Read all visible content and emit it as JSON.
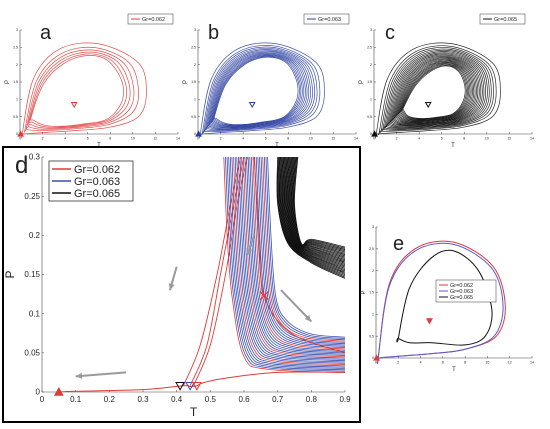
{
  "chart_data": [
    {
      "panel": "a",
      "type": "line",
      "panel_label": "a",
      "xlabel": "T",
      "ylabel": "P",
      "xlim": [
        0,
        14
      ],
      "ylim": [
        0,
        3
      ],
      "xticks": [
        "0",
        "2",
        "4",
        "6",
        "8",
        "10",
        "12",
        "14"
      ],
      "yticks": [
        "0",
        "0.5",
        "1",
        "1.5",
        "2",
        "2.5",
        "3"
      ],
      "legend": [
        "Gr=0.062"
      ],
      "legend_position": "top-right",
      "series": [
        {
          "name": "Gr=0.062",
          "color": "#e03a3a",
          "loop_count": 6,
          "outer_loop_x": [
            0.2,
            1.2,
            3.5,
            7.0,
            10.5,
            11.2,
            10.5,
            8.0,
            5.0,
            2.5,
            1.0,
            0.3
          ],
          "outer_loop_y": [
            0.0,
            1.6,
            2.45,
            2.6,
            2.05,
            1.2,
            0.5,
            0.2,
            0.1,
            0.05,
            0.02,
            0.0
          ],
          "inner_loop_x": [
            1.0,
            2.5,
            5.5,
            8.0,
            9.6,
            8.0,
            5.0,
            2.5,
            1.2
          ],
          "inner_loop_y": [
            0.5,
            1.8,
            2.3,
            2.1,
            1.2,
            0.45,
            0.25,
            0.2,
            0.4
          ]
        }
      ],
      "markers": [
        {
          "x": 4.8,
          "y": 0.85,
          "symbol": "triangle-down-open",
          "color": "#e03a3a"
        },
        {
          "x": 0.05,
          "y": 0.0,
          "symbol": "triangle-up-filled",
          "color": "#e03a3a"
        }
      ]
    },
    {
      "panel": "b",
      "type": "line",
      "panel_label": "b",
      "xlabel": "T",
      "ylabel": "P",
      "xlim": [
        0,
        14
      ],
      "ylim": [
        0,
        3
      ],
      "xticks": [
        "0",
        "2",
        "4",
        "6",
        "8",
        "10",
        "12",
        "14"
      ],
      "yticks": [
        "0",
        "0.5",
        "1",
        "1.5",
        "2",
        "2.5",
        "3"
      ],
      "legend": [
        "Gr=0.063"
      ],
      "legend_position": "top-right",
      "series": [
        {
          "name": "Gr=0.063",
          "color": "#2b3fa0",
          "loop_count": 14,
          "outer_loop_x": [
            0.2,
            1.2,
            3.5,
            7.0,
            10.5,
            11.2,
            10.5,
            8.0,
            5.0,
            2.5,
            1.0,
            0.3
          ],
          "outer_loop_y": [
            0.0,
            1.6,
            2.45,
            2.6,
            2.05,
            1.2,
            0.5,
            0.2,
            0.1,
            0.05,
            0.02,
            0.0
          ],
          "inner_loop_x": [
            1.5,
            2.8,
            5.5,
            8.0,
            9.2,
            7.8,
            5.0,
            2.8,
            1.6
          ],
          "inner_loop_y": [
            0.55,
            1.75,
            2.25,
            2.05,
            1.2,
            0.5,
            0.3,
            0.25,
            0.45
          ]
        }
      ],
      "markers": [
        {
          "x": 4.8,
          "y": 0.85,
          "symbol": "triangle-down-open",
          "color": "#2b3fa0"
        },
        {
          "x": 0.05,
          "y": 0.0,
          "symbol": "triangle-up-filled",
          "color": "#2b3fa0"
        }
      ]
    },
    {
      "panel": "c",
      "type": "line",
      "panel_label": "c",
      "xlabel": "T",
      "ylabel": "P",
      "xlim": [
        0,
        14
      ],
      "ylim": [
        0,
        3
      ],
      "xticks": [
        "0",
        "2",
        "4",
        "6",
        "8",
        "10",
        "12",
        "14"
      ],
      "yticks": [
        "0",
        "0.5",
        "1",
        "1.5",
        "2",
        "2.5",
        "3"
      ],
      "legend": [
        "Gr=0.065"
      ],
      "legend_position": "top-right",
      "series": [
        {
          "name": "Gr=0.065",
          "color": "#111111",
          "loop_count": 22,
          "outer_loop_x": [
            0.2,
            1.2,
            3.5,
            7.0,
            10.5,
            11.2,
            10.5,
            8.0,
            5.0,
            2.5,
            1.0,
            0.3
          ],
          "outer_loop_y": [
            0.0,
            1.6,
            2.45,
            2.6,
            2.05,
            1.2,
            0.5,
            0.2,
            0.1,
            0.05,
            0.02,
            0.0
          ],
          "inner_loop_x": [
            2.6,
            4.0,
            6.0,
            7.6,
            8.3,
            7.2,
            5.0,
            3.2,
            2.6
          ],
          "inner_loop_y": [
            0.75,
            1.6,
            2.0,
            1.8,
            1.15,
            0.6,
            0.45,
            0.45,
            0.7
          ]
        }
      ],
      "markers": [
        {
          "x": 4.8,
          "y": 0.85,
          "symbol": "triangle-down-open",
          "color": "#111111"
        },
        {
          "x": 0.05,
          "y": 0.0,
          "symbol": "triangle-up-filled",
          "color": "#111111"
        }
      ]
    },
    {
      "panel": "d",
      "type": "line",
      "panel_label": "d",
      "xlabel": "T",
      "ylabel": "P",
      "xlim": [
        0,
        0.9
      ],
      "ylim": [
        0,
        0.3
      ],
      "xticks": [
        "0",
        "0.1",
        "0.2",
        "0.3",
        "0.4",
        "0.5",
        "0.6",
        "0.7",
        "0.8",
        "0.9"
      ],
      "yticks": [
        "0",
        "0.05",
        "0.1",
        "0.15",
        "0.2",
        "0.25",
        "0.3"
      ],
      "legend": [
        "Gr=0.062",
        "Gr=0.063",
        "Gr=0.065"
      ],
      "legend_position": "top-left",
      "series": [
        {
          "name": "Gr=0.062",
          "color": "#e03a3a",
          "trajectory_x": [
            0.9,
            0.7,
            0.55,
            0.48,
            0.46,
            0.44,
            0.42,
            0.3,
            0.1,
            0.05
          ],
          "trajectory_y": [
            0.025,
            0.025,
            0.018,
            0.012,
            0.008,
            0.007,
            0.008,
            0.003,
            0.001,
            0.0
          ]
        },
        {
          "name": "Gr=0.063",
          "color": "#3b4fb0",
          "spiral_band_x": [
            0.55,
            0.9
          ],
          "spiral_band_y": [
            0.02,
            0.3
          ]
        },
        {
          "name": "Gr=0.065",
          "color": "#111111",
          "spiral_band_x": [
            0.7,
            0.9
          ],
          "spiral_band_y": [
            0.14,
            0.3
          ]
        }
      ],
      "markers": [
        {
          "x": 0.05,
          "y": 0.0,
          "symbol": "triangle-up-filled",
          "color": "#e03a3a"
        },
        {
          "x": 0.41,
          "y": 0.008,
          "symbol": "triangle-down-open",
          "color": "#111111"
        },
        {
          "x": 0.44,
          "y": 0.008,
          "symbol": "triangle-down-open",
          "color": "#3b4fb0"
        },
        {
          "x": 0.46,
          "y": 0.008,
          "symbol": "triangle-down-open",
          "color": "#e03a3a"
        },
        {
          "x": 0.66,
          "y": 0.123,
          "symbol": "x",
          "color": "#e03a3a"
        }
      ],
      "arrows": [
        {
          "x1": 0.63,
          "y1": 0.2,
          "x2": 0.61,
          "y2": 0.175
        },
        {
          "x1": 0.4,
          "y1": 0.16,
          "x2": 0.38,
          "y2": 0.13
        },
        {
          "x1": 0.71,
          "y1": 0.13,
          "x2": 0.8,
          "y2": 0.09
        },
        {
          "x1": 0.25,
          "y1": 0.025,
          "x2": 0.1,
          "y2": 0.02
        }
      ]
    },
    {
      "panel": "e",
      "type": "line",
      "panel_label": "e",
      "xlabel": "T",
      "ylabel": "P",
      "xlim": [
        0,
        14
      ],
      "ylim": [
        0,
        3
      ],
      "xticks": [
        "0",
        "2",
        "4",
        "6",
        "8",
        "10",
        "12",
        "14"
      ],
      "yticks": [
        "0",
        "0.5",
        "1",
        "1.5",
        "2",
        "2.5",
        "3"
      ],
      "legend": [
        "Gr=0.062",
        "Gr=0.063",
        "Gr=0.065"
      ],
      "legend_position": "bottom-right",
      "series": [
        {
          "name": "Gr=0.062",
          "color": "#e03a3a",
          "loop_x": [
            0.2,
            1.2,
            3.5,
            7.0,
            10.5,
            11.6,
            10.8,
            8.0,
            5.0,
            2.5,
            1.0,
            0.3
          ],
          "loop_y": [
            0.0,
            1.7,
            2.5,
            2.65,
            2.1,
            1.2,
            0.5,
            0.2,
            0.1,
            0.05,
            0.02,
            0.0
          ]
        },
        {
          "name": "Gr=0.063",
          "color": "#5a5ad0",
          "loop_x": [
            0.2,
            1.2,
            3.5,
            7.0,
            10.4,
            11.4,
            10.6,
            8.0,
            5.0,
            2.5,
            1.0,
            0.3
          ],
          "loop_y": [
            0.0,
            1.65,
            2.45,
            2.6,
            2.05,
            1.2,
            0.5,
            0.2,
            0.1,
            0.05,
            0.02,
            0.0
          ]
        },
        {
          "name": "Gr=0.065",
          "color": "#111111",
          "loop_x": [
            2.0,
            3.0,
            5.0,
            7.0,
            9.2,
            10.4,
            9.8,
            8.0,
            5.0,
            3.0,
            2.0
          ],
          "loop_y": [
            0.45,
            1.6,
            2.3,
            2.45,
            2.0,
            1.1,
            0.5,
            0.3,
            0.35,
            0.35,
            0.45
          ]
        }
      ],
      "markers": [
        {
          "x": 4.8,
          "y": 0.85,
          "symbol": "triangle-down-filled",
          "color": "#e03a3a"
        },
        {
          "x": 0.05,
          "y": 0.0,
          "symbol": "triangle-up-filled",
          "color": "#e03a3a"
        }
      ]
    }
  ]
}
